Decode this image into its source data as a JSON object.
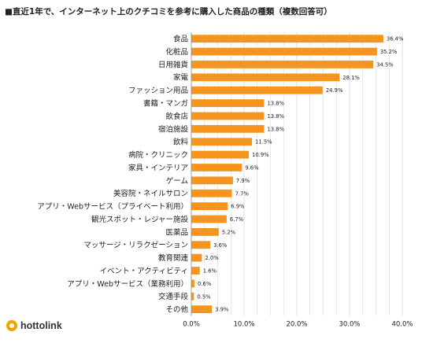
{
  "colors": {
    "bar": "#f5941e",
    "grid": "#d6d6d6",
    "axis": "#888888",
    "logo": "#f5a300"
  },
  "brand": {
    "name": "hottolink",
    "icon": "hottolink-logo-icon"
  },
  "chart_data": {
    "type": "bar",
    "orientation": "horizontal",
    "title": "■直近1年で、インターネット上のクチコミを参考に購入した商品の種類（複数回答可）",
    "xlabel": "",
    "ylabel": "",
    "xlim": [
      0,
      40
    ],
    "grid": true,
    "legend": "none",
    "categories": [
      "食品",
      "化粧品",
      "日用雑貨",
      "家電",
      "ファッション用品",
      "書籍・マンガ",
      "飲食店",
      "宿泊施設",
      "飲料",
      "病院・クリニック",
      "家具・インテリア",
      "ゲーム",
      "美容院・ネイルサロン",
      "アプリ・Webサービス（プライベート利用）",
      "観光スポット・レジャー施設",
      "医薬品",
      "マッサージ・リラクゼーション",
      "教育関連",
      "イベント・アクティビティ",
      "アプリ・Webサービス（業務利用）",
      "交通手段",
      "その他"
    ],
    "values": [
      36.4,
      35.2,
      34.5,
      28.1,
      24.9,
      13.8,
      13.8,
      13.8,
      11.5,
      10.9,
      9.6,
      7.9,
      7.7,
      6.9,
      6.7,
      5.2,
      3.6,
      2.0,
      1.6,
      0.6,
      0.5,
      3.9
    ],
    "value_labels": [
      "36.4%",
      "35.2%",
      "34.5%",
      "28.1%",
      "24.9%",
      "13.8%",
      "13.8%",
      "13.8%",
      "11.5%",
      "10.9%",
      "9.6%",
      "7.9%",
      "7.7%",
      "6.9%",
      "6.7%",
      "5.2%",
      "3.6%",
      "2.0%",
      "1.6%",
      "0.6%",
      "0.5%",
      "3.9%"
    ],
    "ticks": [
      0,
      10,
      20,
      30,
      40
    ],
    "tick_labels": [
      "0.0%",
      "10.0%",
      "20.0%",
      "30.0%",
      "40.0%"
    ]
  }
}
